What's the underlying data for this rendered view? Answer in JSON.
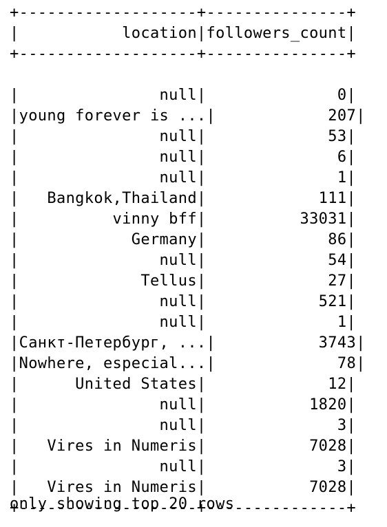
{
  "table": {
    "border": "+-------------------+---------------+",
    "columns": [
      "location",
      "followers_count"
    ],
    "rows": [
      {
        "location": "null",
        "followers_count": "0"
      },
      {
        "location": "young forever is ...",
        "followers_count": "207"
      },
      {
        "location": "null",
        "followers_count": "53"
      },
      {
        "location": "null",
        "followers_count": "6"
      },
      {
        "location": "null",
        "followers_count": "1"
      },
      {
        "location": "Bangkok,Thailand",
        "followers_count": "111"
      },
      {
        "location": "vinny bff",
        "followers_count": "33031"
      },
      {
        "location": "Germany",
        "followers_count": "86"
      },
      {
        "location": "null",
        "followers_count": "54"
      },
      {
        "location": "Tellus",
        "followers_count": "27"
      },
      {
        "location": "null",
        "followers_count": "521"
      },
      {
        "location": "null",
        "followers_count": "1"
      },
      {
        "location": "Санкт-Петербург, ...",
        "followers_count": "3743"
      },
      {
        "location": "Nowhere, especial...",
        "followers_count": "78"
      },
      {
        "location": "United States",
        "followers_count": "12"
      },
      {
        "location": "null",
        "followers_count": "1820"
      },
      {
        "location": "null",
        "followers_count": "3"
      },
      {
        "location": "Vires in Numeris",
        "followers_count": "7028"
      },
      {
        "location": "null",
        "followers_count": "3"
      },
      {
        "location": "Vires in Numeris",
        "followers_count": "7028"
      }
    ]
  },
  "footer": "only showing top 20 rows"
}
